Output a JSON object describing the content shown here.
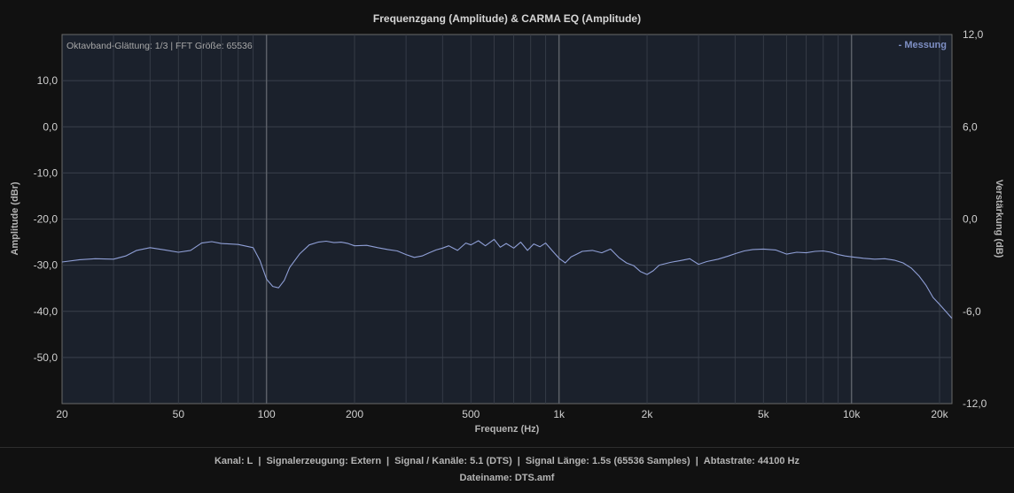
{
  "chart_data": {
    "type": "line",
    "title": "Frequenzgang (Amplitude) & CARMA EQ (Amplitude)",
    "info_text": "Oktavband-Glättung: 1/3 | FFT Größe: 65536",
    "xlabel": "Frequenz (Hz)",
    "ylabel": "Amplitude (dBr)",
    "y2label": "Verstärkung (dB)",
    "x_scale": "log",
    "xlim": [
      20,
      22050
    ],
    "ylim": [
      -60,
      20
    ],
    "y2lim": [
      -12,
      12
    ],
    "x_ticks": [
      20,
      50,
      100,
      200,
      500,
      1000,
      2000,
      5000,
      10000,
      20000
    ],
    "x_tick_labels": [
      "20",
      "50",
      "100",
      "200",
      "500",
      "1k",
      "2k",
      "5k",
      "10k",
      "20k"
    ],
    "y_ticks": [
      10,
      0,
      -10,
      -20,
      -30,
      -40,
      -50
    ],
    "y_tick_labels": [
      "10,0",
      "0,0",
      "-10,0",
      "-20,0",
      "-30,0",
      "-40,0",
      "-50,0"
    ],
    "y2_ticks": [
      12,
      6,
      0,
      -6,
      -12
    ],
    "y2_tick_labels": [
      "12,0",
      "6,0",
      "0,0",
      "-6,0",
      "-12,0"
    ],
    "grid": true,
    "legend_position": "top-right",
    "series": [
      {
        "name": "- Messung",
        "color": "#8f9fd6",
        "x": [
          20,
          23,
          26,
          30,
          33,
          36,
          40,
          45,
          50,
          55,
          60,
          65,
          70,
          80,
          90,
          95,
          100,
          105,
          110,
          115,
          120,
          130,
          140,
          150,
          160,
          170,
          180,
          190,
          200,
          220,
          240,
          260,
          280,
          300,
          320,
          340,
          360,
          380,
          400,
          420,
          450,
          480,
          500,
          530,
          560,
          600,
          630,
          660,
          700,
          740,
          780,
          820,
          860,
          900,
          950,
          1000,
          1050,
          1100,
          1150,
          1200,
          1300,
          1400,
          1500,
          1600,
          1700,
          1800,
          1900,
          2000,
          2100,
          2200,
          2400,
          2600,
          2800,
          3000,
          3200,
          3500,
          3800,
          4000,
          4300,
          4600,
          5000,
          5500,
          6000,
          6500,
          7000,
          7500,
          8000,
          8500,
          9000,
          9500,
          10000,
          11000,
          12000,
          13000,
          14000,
          15000,
          16000,
          17000,
          18000,
          19000,
          20000,
          21000,
          22050
        ],
        "values": [
          -29.3,
          -28.8,
          -28.6,
          -28.7,
          -28.0,
          -26.8,
          -26.2,
          -26.7,
          -27.2,
          -26.8,
          -25.2,
          -24.9,
          -25.3,
          -25.5,
          -26.2,
          -29.0,
          -33.0,
          -34.6,
          -34.9,
          -33.3,
          -30.5,
          -27.5,
          -25.6,
          -25.0,
          -24.8,
          -25.1,
          -25.0,
          -25.3,
          -25.8,
          -25.7,
          -26.2,
          -26.6,
          -26.9,
          -27.7,
          -28.3,
          -28.0,
          -27.3,
          -26.7,
          -26.3,
          -25.8,
          -26.8,
          -25.2,
          -25.6,
          -24.7,
          -25.8,
          -24.4,
          -26.1,
          -25.3,
          -26.3,
          -25.0,
          -26.8,
          -25.4,
          -26.0,
          -25.2,
          -26.9,
          -28.5,
          -29.5,
          -28.2,
          -27.6,
          -27.0,
          -26.8,
          -27.3,
          -26.5,
          -28.3,
          -29.5,
          -30.1,
          -31.4,
          -32.0,
          -31.2,
          -30.0,
          -29.4,
          -29.0,
          -28.6,
          -29.8,
          -29.2,
          -28.7,
          -28.0,
          -27.5,
          -26.9,
          -26.6,
          -26.5,
          -26.7,
          -27.6,
          -27.2,
          -27.3,
          -27.0,
          -26.9,
          -27.2,
          -27.7,
          -28.0,
          -28.2,
          -28.5,
          -28.7,
          -28.6,
          -28.9,
          -29.5,
          -30.6,
          -32.3,
          -34.4,
          -37.0,
          -38.5,
          -40.0,
          -41.5
        ]
      }
    ]
  },
  "footer": {
    "kanal": "Kanal: L",
    "signalerzeugung": "Signalerzeugung: Extern",
    "signal_kanaele": "Signal / Kanäle: 5.1 (DTS)",
    "signal_laenge": "Signal Länge: 1.5s (65536 Samples)",
    "abtastrate": "Abtastrate: 44100 Hz",
    "dateiname": "Dateiname: DTS.amf",
    "separator": "|"
  }
}
